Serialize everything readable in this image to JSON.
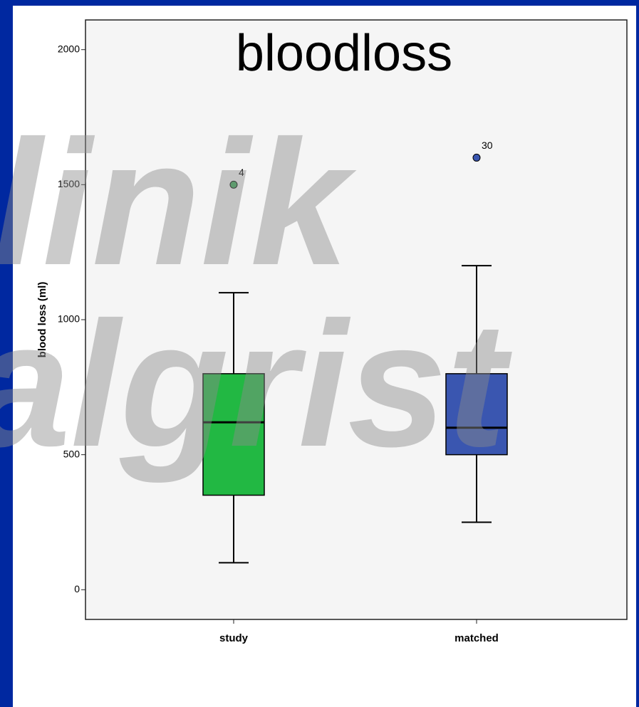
{
  "chart_data": {
    "type": "box",
    "title": "bloodloss",
    "y_label": "blood loss (ml)",
    "watermark": [
      "linik",
      "algrist"
    ],
    "categories": [
      "study",
      "matched"
    ],
    "boxes": [
      {
        "color": "#22b843",
        "whisker_low": 100,
        "q1": 350,
        "median": 620,
        "q3": 800,
        "whisker_high": 1100,
        "outliers": [
          {
            "value": 1500,
            "label": "4",
            "color": "#3aa856"
          }
        ]
      },
      {
        "color": "#3a56b0",
        "whisker_low": 250,
        "q1": 500,
        "median": 600,
        "q3": 800,
        "whisker_high": 1200,
        "outliers": [
          {
            "value": 1600,
            "label": "30",
            "color": "#3a56b0"
          }
        ]
      }
    ],
    "ylim": [
      -110,
      2110
    ],
    "yticks": [
      0,
      500,
      1000,
      1500,
      2000
    ]
  }
}
